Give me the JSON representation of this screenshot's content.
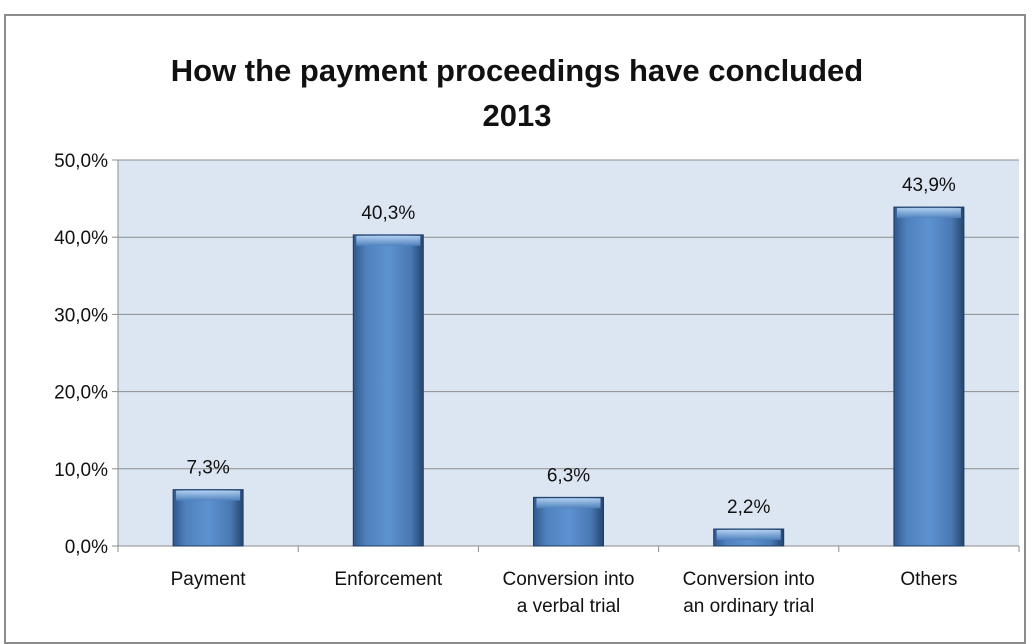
{
  "chart_data": {
    "type": "bar",
    "title_lines": [
      "How the payment proceedings have concluded",
      "2013"
    ],
    "categories": [
      [
        "Payment"
      ],
      [
        "Enforcement"
      ],
      [
        "Conversion into",
        "a verbal trial"
      ],
      [
        "Conversion into",
        "an ordinary trial"
      ],
      [
        "Others"
      ]
    ],
    "values": [
      7.3,
      40.3,
      6.3,
      2.2,
      43.9
    ],
    "data_labels": [
      "7,3%",
      "40,3%",
      "6,3%",
      "2,2%",
      "43,9%"
    ],
    "ylim": [
      0,
      50
    ],
    "yticks": [
      0,
      10,
      20,
      30,
      40,
      50
    ],
    "ytick_labels": [
      "0,0%",
      "10,0%",
      "20,0%",
      "30,0%",
      "40,0%",
      "50,0%"
    ],
    "grid": true,
    "legend": "none",
    "colors": {
      "plot_background": "#dce6f2",
      "bar_main": "#4f81bd",
      "bar_dark": "#2b4f7e",
      "bar_light": "#9dc3ea",
      "gridline": "#8c8c8c"
    }
  }
}
